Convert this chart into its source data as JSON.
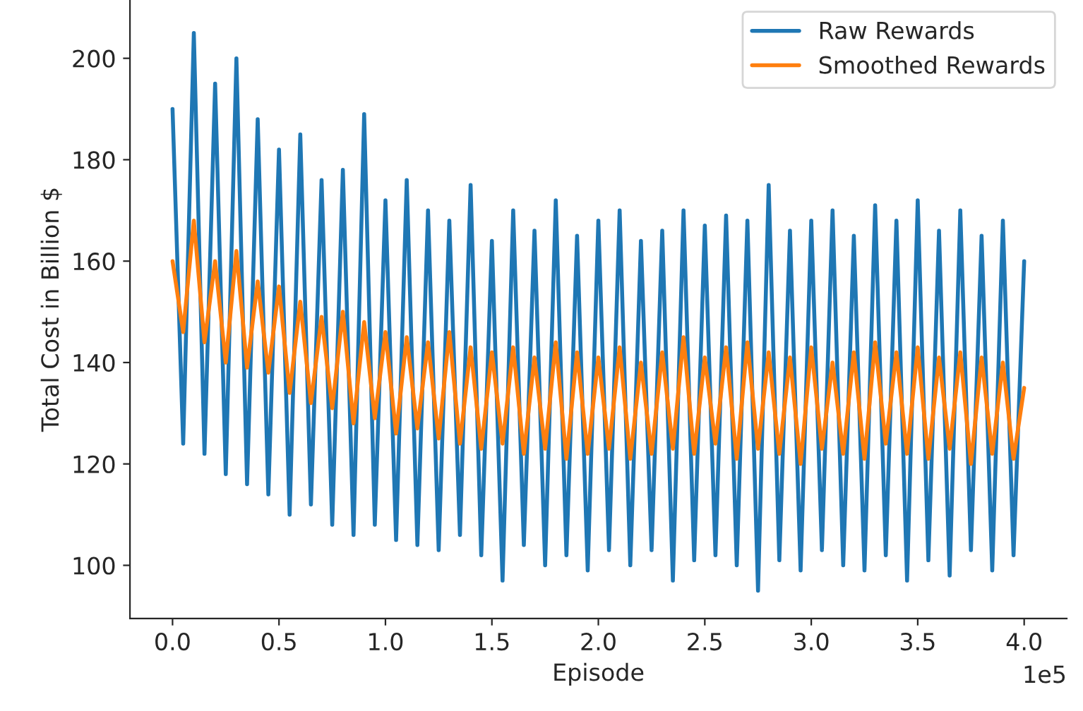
{
  "chart_data": {
    "type": "line",
    "xlabel": "Episode",
    "ylabel": "Total Cost in Billion $",
    "x": [
      0,
      0.05,
      0.1,
      0.15,
      0.2,
      0.25,
      0.3,
      0.35,
      0.4,
      0.45,
      0.5,
      0.55,
      0.6,
      0.65,
      0.7,
      0.75,
      0.8,
      0.85,
      0.9,
      0.95,
      1.0,
      1.05,
      1.1,
      1.15,
      1.2,
      1.25,
      1.3,
      1.35,
      1.4,
      1.45,
      1.5,
      1.55,
      1.6,
      1.65,
      1.7,
      1.75,
      1.8,
      1.85,
      1.9,
      1.95,
      2.0,
      2.05,
      2.1,
      2.15,
      2.2,
      2.25,
      2.3,
      2.35,
      2.4,
      2.45,
      2.5,
      2.55,
      2.6,
      2.65,
      2.7,
      2.75,
      2.8,
      2.85,
      2.9,
      2.95,
      3.0,
      3.05,
      3.1,
      3.15,
      3.2,
      3.25,
      3.3,
      3.35,
      3.4,
      3.45,
      3.5,
      3.55,
      3.6,
      3.65,
      3.7,
      3.75,
      3.8,
      3.85,
      3.9,
      3.95,
      4.0
    ],
    "series": [
      {
        "name": "Raw Rewards",
        "color": "#1f77b4",
        "values": [
          190,
          124,
          205,
          122,
          195,
          118,
          200,
          116,
          188,
          114,
          182,
          110,
          185,
          112,
          176,
          108,
          178,
          106,
          189,
          108,
          172,
          105,
          176,
          104,
          170,
          103,
          168,
          106,
          175,
          102,
          164,
          97,
          170,
          104,
          166,
          100,
          172,
          102,
          165,
          99,
          168,
          103,
          170,
          100,
          164,
          103,
          166,
          97,
          170,
          101,
          167,
          102,
          169,
          100,
          168,
          95,
          175,
          101,
          166,
          99,
          168,
          103,
          170,
          100,
          165,
          99,
          171,
          102,
          168,
          97,
          172,
          101,
          166,
          98,
          170,
          103,
          165,
          99,
          168,
          102,
          160
        ]
      },
      {
        "name": "Smoothed Rewards",
        "color": "#ff7f0e",
        "values": [
          160,
          146,
          168,
          144,
          160,
          140,
          162,
          139,
          156,
          138,
          155,
          134,
          152,
          132,
          149,
          131,
          150,
          128,
          148,
          129,
          146,
          126,
          145,
          127,
          144,
          125,
          146,
          124,
          143,
          123,
          142,
          124,
          143,
          122,
          141,
          123,
          144,
          121,
          142,
          122,
          141,
          123,
          143,
          121,
          140,
          122,
          142,
          123,
          145,
          122,
          141,
          124,
          143,
          121,
          144,
          123,
          142,
          122,
          141,
          120,
          143,
          123,
          140,
          122,
          142,
          121,
          144,
          124,
          142,
          122,
          143,
          121,
          141,
          123,
          142,
          120,
          141,
          122,
          140,
          121,
          135
        ]
      }
    ],
    "xlim": [
      -0.2,
      4.2
    ],
    "xticks": [
      {
        "value": 0,
        "label": "0.0"
      },
      0.5,
      {
        "value": 1,
        "label": "1.0"
      },
      1.5,
      {
        "value": 2,
        "label": "2.0"
      },
      2.5,
      {
        "value": 3,
        "label": "3.0"
      },
      3.5,
      {
        "value": 4,
        "label": "4.0"
      }
    ],
    "ylim": [
      89.5,
      211.5
    ],
    "yticks": [
      100,
      120,
      140,
      160,
      180,
      200
    ],
    "annotations": [
      "1e5"
    ],
    "grid": false,
    "legend": "top right",
    "marker": "none",
    "line_style": "solid"
  }
}
